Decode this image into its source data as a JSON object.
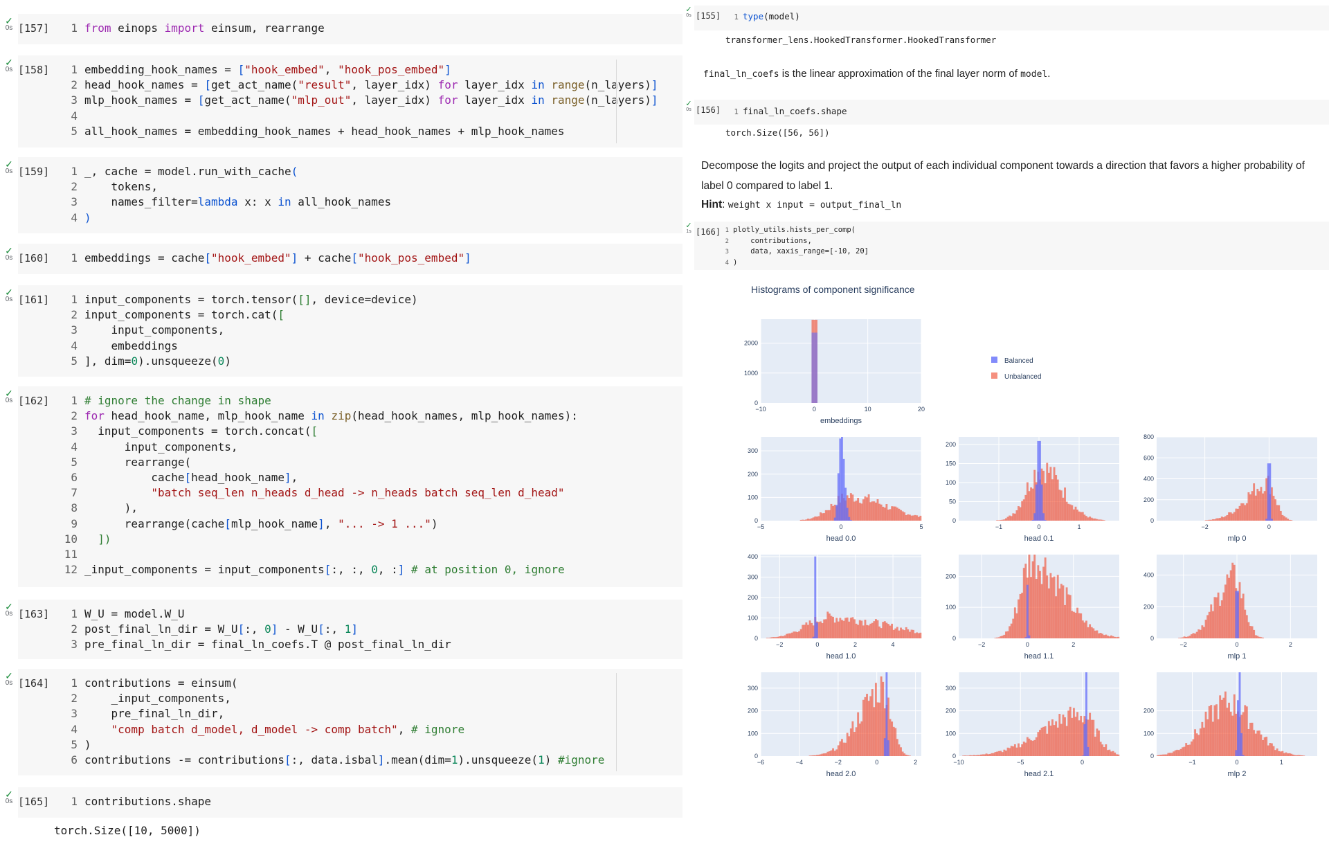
{
  "left_cells": [
    {
      "idx": "[157]",
      "time": "0s",
      "lines": [
        [
          [
            "from",
            "kw"
          ],
          [
            " einops ",
            ""
          ],
          [
            "import",
            "kw"
          ],
          [
            " einsum, rearrange",
            ""
          ]
        ]
      ]
    },
    {
      "idx": "[158]",
      "time": "0s",
      "lines": [
        [
          [
            "embedding_hook_names = ",
            ""
          ],
          [
            "[",
            "pn"
          ],
          [
            "\"hook_embed\"",
            "st"
          ],
          [
            ", ",
            ""
          ],
          [
            "\"hook_pos_embed\"",
            "st"
          ],
          [
            "]",
            "pn"
          ]
        ],
        [
          [
            "head_hook_names = ",
            ""
          ],
          [
            "[",
            "pn"
          ],
          [
            "get_act_name(",
            ""
          ],
          [
            "\"result\"",
            "st"
          ],
          [
            ", layer_idx) ",
            ""
          ],
          [
            "for",
            "kw"
          ],
          [
            " layer_idx ",
            ""
          ],
          [
            "in",
            "kw2"
          ],
          [
            " ",
            ""
          ],
          [
            "range",
            "bi"
          ],
          [
            "(n_layers)",
            ""
          ],
          [
            "]",
            "pn"
          ]
        ],
        [
          [
            "mlp_hook_names = ",
            ""
          ],
          [
            "[",
            "pn"
          ],
          [
            "get_act_name(",
            ""
          ],
          [
            "\"mlp_out\"",
            "st"
          ],
          [
            ", layer_idx) ",
            ""
          ],
          [
            "for",
            "kw"
          ],
          [
            " layer_idx ",
            ""
          ],
          [
            "in",
            "kw2"
          ],
          [
            " ",
            ""
          ],
          [
            "range",
            "bi"
          ],
          [
            "(n_layers)",
            ""
          ],
          [
            "]",
            "pn"
          ]
        ],
        [],
        [
          [
            "all_hook_names = embedding_hook_names + head_hook_names + mlp_hook_names",
            ""
          ]
        ]
      ]
    },
    {
      "idx": "[159]",
      "time": "0s",
      "lines": [
        [
          [
            "_, cache = model.run_with_cache",
            ""
          ],
          [
            "(",
            "pn"
          ]
        ],
        [
          [
            "    tokens,",
            ""
          ]
        ],
        [
          [
            "    names_filter=",
            ""
          ],
          [
            "lambda",
            "kw2"
          ],
          [
            " x: x ",
            ""
          ],
          [
            "in",
            "kw2"
          ],
          [
            " all_hook_names",
            ""
          ]
        ],
        [
          [
            ")",
            "pn"
          ]
        ]
      ]
    },
    {
      "idx": "[160]",
      "time": "0s",
      "lines": [
        [
          [
            "embeddings = cache",
            ""
          ],
          [
            "[",
            "pn"
          ],
          [
            "\"hook_embed\"",
            "st"
          ],
          [
            "]",
            "pn"
          ],
          [
            " + cache",
            ""
          ],
          [
            "[",
            "pn"
          ],
          [
            "\"hook_pos_embed\"",
            "st"
          ],
          [
            "]",
            "pn"
          ]
        ]
      ]
    },
    {
      "idx": "[161]",
      "time": "0s",
      "lines": [
        [
          [
            "input_components = torch.tensor(",
            ""
          ],
          [
            "[]",
            "cm"
          ],
          [
            ", device=device)",
            ""
          ]
        ],
        [
          [
            "input_components = torch.cat(",
            ""
          ],
          [
            "[",
            "cm"
          ]
        ],
        [
          [
            "    input_components,",
            ""
          ]
        ],
        [
          [
            "    embeddings",
            ""
          ]
        ],
        [
          [
            "], dim=",
            ""
          ],
          [
            "0",
            "nm"
          ],
          [
            ").unsqueeze(",
            ""
          ],
          [
            "0",
            "nm"
          ],
          [
            ")",
            ""
          ]
        ]
      ]
    },
    {
      "idx": "[162]",
      "time": "0s",
      "lines": [
        [
          [
            "# ignore the change in shape",
            "cm"
          ]
        ],
        [
          [
            "for",
            "kw"
          ],
          [
            " head_hook_name, mlp_hook_name ",
            ""
          ],
          [
            "in",
            "kw2"
          ],
          [
            " ",
            ""
          ],
          [
            "zip",
            "bi"
          ],
          [
            "(head_hook_names, mlp_hook_names):",
            ""
          ]
        ],
        [
          [
            "  input_components = torch.concat(",
            ""
          ],
          [
            "[",
            "cm"
          ]
        ],
        [
          [
            "      input_components,",
            ""
          ]
        ],
        [
          [
            "      rearrange(",
            ""
          ]
        ],
        [
          [
            "          cache",
            ""
          ],
          [
            "[",
            "pn"
          ],
          [
            "head_hook_name",
            ""
          ],
          [
            "]",
            "pn"
          ],
          [
            ",",
            ""
          ]
        ],
        [
          [
            "          ",
            ""
          ],
          [
            "\"batch seq_len n_heads d_head -> n_heads batch seq_len d_head\"",
            "st"
          ]
        ],
        [
          [
            "      ),",
            ""
          ]
        ],
        [
          [
            "      rearrange(cache",
            ""
          ],
          [
            "[",
            "pn"
          ],
          [
            "mlp_hook_name",
            ""
          ],
          [
            "]",
            "pn"
          ],
          [
            ", ",
            ""
          ],
          [
            "\"... -> 1 ...\"",
            "st"
          ],
          [
            ")",
            ""
          ]
        ],
        [
          [
            "  ",
            ""
          ],
          [
            "])",
            "cm"
          ]
        ],
        [],
        [
          [
            "_input_components = input_components",
            ""
          ],
          [
            "[",
            "pn"
          ],
          [
            ":, :, ",
            ""
          ],
          [
            "0",
            "nm"
          ],
          [
            ", :",
            ""
          ],
          [
            "]",
            "pn"
          ],
          [
            " ",
            ""
          ],
          [
            "# at position 0, ignore",
            "cm"
          ]
        ]
      ]
    },
    {
      "idx": "[163]",
      "time": "0s",
      "lines": [
        [
          [
            "W_U = model.W_U",
            ""
          ]
        ],
        [
          [
            "post_final_ln_dir = W_U",
            ""
          ],
          [
            "[",
            "pn"
          ],
          [
            ":, ",
            ""
          ],
          [
            "0",
            "nm"
          ],
          [
            "]",
            "pn"
          ],
          [
            " - W_U",
            ""
          ],
          [
            "[",
            "pn"
          ],
          [
            ":, ",
            ""
          ],
          [
            "1",
            "nm"
          ],
          [
            "]",
            "pn"
          ]
        ],
        [
          [
            "pre_final_ln_dir = final_ln_coefs.T @ post_final_ln_dir",
            ""
          ]
        ]
      ]
    },
    {
      "idx": "[164]",
      "time": "0s",
      "lines": [
        [
          [
            "contributions = einsum(",
            ""
          ]
        ],
        [
          [
            "    _input_components,",
            ""
          ]
        ],
        [
          [
            "    pre_final_ln_dir,",
            ""
          ]
        ],
        [
          [
            "    ",
            ""
          ],
          [
            "\"comp batch d_model, d_model -> comp batch\"",
            "st"
          ],
          [
            ", ",
            ""
          ],
          [
            "# ignore",
            "cm"
          ]
        ],
        [
          [
            ")",
            ""
          ]
        ],
        [
          [
            "contributions -= contributions",
            ""
          ],
          [
            "[",
            "pn"
          ],
          [
            ":, data.isbal",
            ""
          ],
          [
            "]",
            "pn"
          ],
          [
            ".mean(dim=",
            ""
          ],
          [
            "1",
            "nm"
          ],
          [
            ").unsqueeze(",
            ""
          ],
          [
            "1",
            "nm"
          ],
          [
            ") ",
            ""
          ],
          [
            "#ignore",
            "cm"
          ]
        ]
      ]
    },
    {
      "idx": "[165]",
      "time": "0s",
      "lines": [
        [
          [
            "contributions.shape",
            ""
          ]
        ]
      ]
    }
  ],
  "left_output_165": "torch.Size([10, 5000])",
  "right": {
    "c155": {
      "idx": "[155]",
      "time": "0s",
      "code": "type",
      "code_rest": "(model)",
      "output": "transformer_lens.HookedTransformer.HookedTransformer"
    },
    "md1_code": "final_ln_coefs",
    "md1_text": " is the linear approximation of the final layer norm of ",
    "md1_code2": "model",
    "md1_end": ".",
    "c156": {
      "idx": "[156]",
      "time": "0s",
      "code": "final_ln_coefs.shape",
      "output": "torch.Size([56, 56])"
    },
    "md2": "Decompose the logits and project the output of each individual component towards a direction that favors a higher probability of label 0 compared to label 1.",
    "hint_label": "Hint",
    "hint_code": "weight x input = output_final_ln",
    "c166": {
      "idx": "[166]",
      "time": "1s",
      "l1": "plotly_utils.hists_per_comp(",
      "l2": "    contributions,",
      "l3": "    data, xaxis_range=[-10, 20]",
      "l4": ")"
    }
  },
  "chart_data": {
    "type": "bar",
    "title": "Histograms of component significance",
    "legend": [
      "Balanced",
      "Unbalanced"
    ],
    "colors": {
      "Balanced": "#636efa",
      "Unbalanced": "#ef553b"
    },
    "legend_position": "right",
    "subplots": [
      {
        "name": "embeddings",
        "xlim": [
          -10,
          20
        ],
        "ylim": [
          0,
          2800
        ],
        "xticks": [
          "−10",
          "0",
          "10",
          "20"
        ],
        "yticks": [
          "0",
          "1000",
          "2000"
        ]
      },
      {
        "name": "head 0.0",
        "xlim": [
          -5,
          5
        ],
        "ylim": [
          0,
          360
        ],
        "xticks": [
          "−5",
          "0",
          "5"
        ],
        "yticks": [
          "0",
          "100",
          "200",
          "300"
        ]
      },
      {
        "name": "head 0.1",
        "xlim": [
          -2,
          2
        ],
        "ylim": [
          0,
          220
        ],
        "xticks": [
          "−1",
          "0",
          "1"
        ],
        "yticks": [
          "0",
          "50",
          "100",
          "150",
          "200"
        ]
      },
      {
        "name": "mlp 0",
        "xlim": [
          -3.5,
          1.5
        ],
        "ylim": [
          0,
          800
        ],
        "xticks": [
          "−2",
          "0"
        ],
        "yticks": [
          "0",
          "200",
          "400",
          "600",
          "800"
        ]
      },
      {
        "name": "head 1.0",
        "xlim": [
          -3,
          5.5
        ],
        "ylim": [
          0,
          410
        ],
        "xticks": [
          "−2",
          "0",
          "2",
          "4"
        ],
        "yticks": [
          "0",
          "100",
          "200",
          "300",
          "400"
        ]
      },
      {
        "name": "head 1.1",
        "xlim": [
          -3,
          4
        ],
        "ylim": [
          0,
          270
        ],
        "xticks": [
          "−2",
          "0",
          "2"
        ],
        "yticks": [
          "0",
          "100",
          "200"
        ]
      },
      {
        "name": "mlp 1",
        "xlim": [
          -3,
          3
        ],
        "ylim": [
          0,
          530
        ],
        "xticks": [
          "−2",
          "0",
          "2"
        ],
        "yticks": [
          "0",
          "200",
          "400"
        ]
      },
      {
        "name": "head 2.0",
        "xlim": [
          -6,
          2.3
        ],
        "ylim": [
          0,
          370
        ],
        "xticks": [
          "−6",
          "−4",
          "−2",
          "0",
          "2"
        ],
        "yticks": [
          "0",
          "100",
          "200",
          "300"
        ]
      },
      {
        "name": "head 2.1",
        "xlim": [
          -10,
          3
        ],
        "ylim": [
          0,
          370
        ],
        "xticks": [
          "−10",
          "−5",
          "0"
        ],
        "yticks": [
          "0",
          "100",
          "200",
          "300"
        ]
      },
      {
        "name": "mlp 2",
        "xlim": [
          -1.8,
          1.8
        ],
        "ylim": [
          0,
          370
        ],
        "xticks": [
          "−1",
          "0",
          "1"
        ],
        "yticks": [
          "0",
          "100",
          "200"
        ]
      }
    ]
  }
}
